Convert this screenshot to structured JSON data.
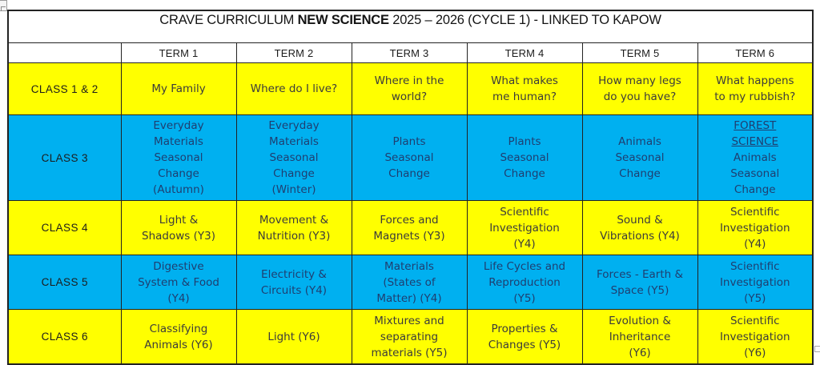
{
  "title": {
    "prefix": "CRAVE CURRICULUM ",
    "bold": "NEW SCIENCE",
    "suffix": " 2025 – 2026 (CYCLE 1) - LINKED TO KAPOW"
  },
  "header": {
    "corner": "",
    "terms": [
      "TERM 1",
      "TERM 2",
      "TERM 3",
      "TERM 4",
      "TERM 5",
      "TERM 6"
    ]
  },
  "colors": {
    "yellow": "#FFFF00",
    "blue": "#00B0F0",
    "text_on_yellow": "#3B3B3B",
    "text_on_blue": "#1F3E70",
    "border": "#222222"
  },
  "rows": [
    {
      "label": "CLASS 1 & 2",
      "bg": "yellow",
      "cells": [
        [
          "My Family"
        ],
        [
          "Where do I live?"
        ],
        [
          "Where in the",
          "world?"
        ],
        [
          "What makes",
          "me human?"
        ],
        [
          "How many legs",
          "do you have?"
        ],
        [
          "What happens",
          "to my rubbish?"
        ]
      ]
    },
    {
      "label": "CLASS 3",
      "bg": "blue",
      "cells": [
        [
          "Everyday",
          "Materials",
          "Seasonal",
          "Change",
          "(Autumn)"
        ],
        [
          "Everyday",
          "Materials",
          "Seasonal",
          "Change",
          "(Winter)"
        ],
        [
          "Plants",
          "Seasonal",
          "Change"
        ],
        [
          "Plants",
          "Seasonal",
          "Change"
        ],
        [
          "Animals",
          "Seasonal",
          "Change"
        ],
        [
          {
            "text": "FOREST",
            "underline": true
          },
          {
            "text": "SCIENCE",
            "underline": true
          },
          "Animals",
          "Seasonal",
          "Change"
        ]
      ]
    },
    {
      "label": "CLASS 4",
      "bg": "yellow",
      "cells": [
        [
          "Light &",
          "Shadows (Y3)"
        ],
        [
          "Movement &",
          "Nutrition (Y3)"
        ],
        [
          "Forces and",
          "Magnets (Y3)"
        ],
        [
          "Scientific",
          "Investigation",
          "(Y4)"
        ],
        [
          "Sound &",
          "Vibrations (Y4)"
        ],
        [
          "Scientific",
          "Investigation",
          "(Y4)"
        ]
      ]
    },
    {
      "label": "CLASS 5",
      "bg": "blue",
      "cells": [
        [
          "Digestive",
          "System & Food",
          "(Y4)"
        ],
        [
          "Electricity &",
          "Circuits (Y4)"
        ],
        [
          "Materials",
          "(States of",
          "Matter) (Y4)"
        ],
        [
          "Life Cycles and",
          "Reproduction",
          "(Y5)"
        ],
        [
          "Forces - Earth &",
          "Space (Y5)"
        ],
        [
          "Scientific",
          "Investigation",
          "(Y5)"
        ]
      ]
    },
    {
      "label": "CLASS 6",
      "bg": "yellow",
      "cells": [
        [
          "Classifying",
          "Animals (Y6)"
        ],
        [
          "Light (Y6)"
        ],
        [
          "Mixtures and",
          "separating",
          "materials (Y5)"
        ],
        [
          "Properties &",
          "Changes (Y5)"
        ],
        [
          "Evolution &",
          "Inheritance",
          "(Y6)"
        ],
        [
          "Scientific",
          "Investigation",
          "(Y6)"
        ]
      ]
    }
  ]
}
